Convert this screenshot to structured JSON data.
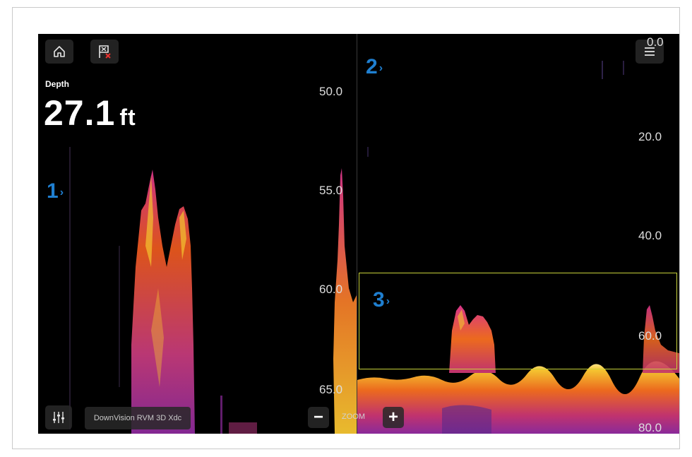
{
  "toolbar": {
    "home_icon": "home-icon",
    "waypoint_icon": "waypoint-flag-icon",
    "menu_icon": "hamburger-menu-icon",
    "settings_icon": "sliders-icon"
  },
  "depth": {
    "label": "Depth",
    "value": "27.1",
    "unit": "ft"
  },
  "callouts": [
    "1",
    "2",
    "3"
  ],
  "left_pane": {
    "scale_labels": [
      "50.0",
      "55.0",
      "60.0",
      "65.0"
    ],
    "source": "DownVision RVM 3D Xdc"
  },
  "right_pane": {
    "scale_labels": [
      "0.0",
      "20.0",
      "40.0",
      "60.0",
      "80.0"
    ]
  },
  "zoom": {
    "label": "ZOOM",
    "minus": "−",
    "plus": "+"
  },
  "colors": {
    "callout": "#1f7fd0",
    "zoom_box": "#c8d23a",
    "sonar_hot": "#f4c430",
    "sonar_mid": "#e8581c",
    "sonar_low": "#8a2a9a"
  }
}
